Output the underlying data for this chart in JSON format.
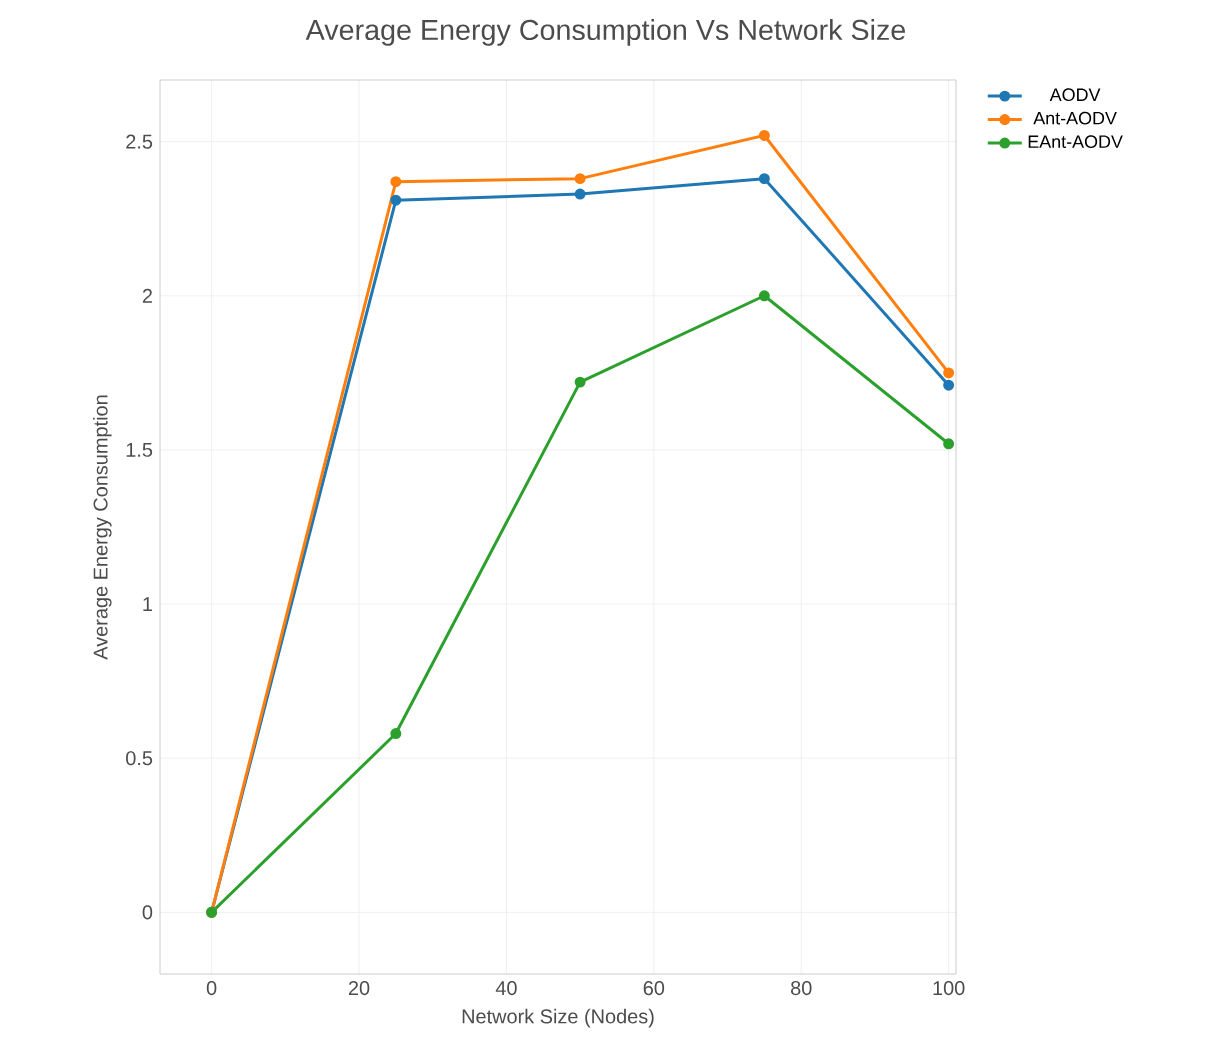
{
  "chart_data": {
    "type": "line",
    "title": "Average Energy Consumption Vs Network Size",
    "xlabel": "Network Size (Nodes)",
    "ylabel": "Average Energy Consumption",
    "x": [
      0,
      25,
      50,
      75,
      100
    ],
    "series": [
      {
        "name": "AODV",
        "color": "#1f77b4",
        "values": [
          0,
          2.31,
          2.33,
          2.38,
          1.71
        ]
      },
      {
        "name": "Ant-AODV",
        "color": "#ff7f0e",
        "values": [
          0,
          2.37,
          2.38,
          2.52,
          1.75
        ]
      },
      {
        "name": "EAnt-AODV",
        "color": "#2ca02c",
        "values": [
          0,
          0.58,
          1.72,
          2.0,
          1.52
        ]
      }
    ],
    "xlim": [
      -7,
      101
    ],
    "ylim": [
      -0.2,
      2.7
    ],
    "xticks": [
      0,
      20,
      40,
      60,
      80,
      100
    ],
    "yticks": [
      0,
      0.5,
      1,
      1.5,
      2,
      2.5
    ],
    "grid": true,
    "legend": "top right",
    "marker": "circle",
    "line_style": "solid"
  }
}
